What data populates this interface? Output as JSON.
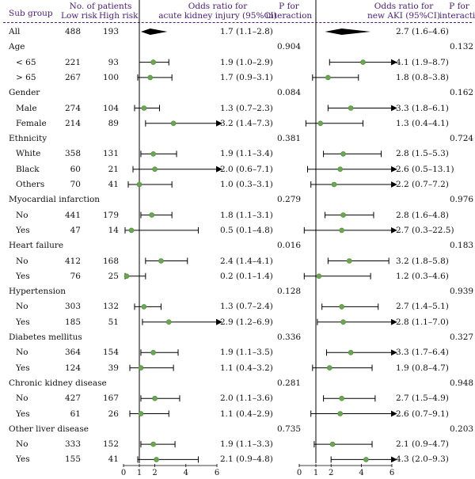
{
  "headers": {
    "subgroup": "Sub group",
    "patients": "No. of patients",
    "low_risk": "Low risk",
    "high_risk": "High risk",
    "or1_line1": "Odds ratio for",
    "or1_line2": "acute kidney injury (95%CI)",
    "p1_line1": "P for",
    "p1_line2": "interaction",
    "or2_line1": "Odds ratio for",
    "or2_line2": "new AKI (95%CI)",
    "p2_line1": "P for",
    "p2_line2": "interaction"
  },
  "chart_data": {
    "type": "forest",
    "axis_ticks": [
      "0",
      "1",
      "2",
      "4",
      "6"
    ],
    "reference_line": 1,
    "rows": [
      {
        "kind": "group",
        "label": "All",
        "low": "488",
        "high": "193",
        "or1": 1.7,
        "ci1": [
          1.1,
          2.8
        ],
        "text1": "1.7 (1.1–2.8)",
        "p1": "",
        "or2": 2.7,
        "ci2": [
          1.6,
          4.6
        ],
        "text2": "2.7 (1.6–4.6)",
        "p2": "",
        "diamond": true
      },
      {
        "kind": "group",
        "label": "Age",
        "p1": "0.904",
        "p2": "0.132"
      },
      {
        "kind": "sub",
        "label": "< 65",
        "low": "221",
        "high": "93",
        "or1": 1.9,
        "ci1": [
          1.0,
          2.9
        ],
        "text1": "1.9 (1.0–2.9)",
        "or2": 4.1,
        "ci2": [
          1.9,
          8.7
        ],
        "text2": "4.1 (1.9–8.7)"
      },
      {
        "kind": "sub",
        "label": "> 65",
        "low": "267",
        "high": "100",
        "or1": 1.7,
        "ci1": [
          0.9,
          3.1
        ],
        "text1": "1.7 (0.9–3.1)",
        "or2": 1.8,
        "ci2": [
          0.8,
          3.8
        ],
        "text2": "1.8 (0.8–3.8)"
      },
      {
        "kind": "group",
        "label": "Gender",
        "p1": "0.084",
        "p2": "0.162"
      },
      {
        "kind": "sub",
        "label": "Male",
        "low": "274",
        "high": "104",
        "or1": 1.3,
        "ci1": [
          0.7,
          2.3
        ],
        "text1": "1.3 (0.7–2.3)",
        "or2": 3.3,
        "ci2": [
          1.8,
          6.1
        ],
        "text2": "3.3 (1.8–6.1)"
      },
      {
        "kind": "sub",
        "label": "Female",
        "low": "214",
        "high": "89",
        "or1": 3.2,
        "ci1": [
          1.4,
          7.3
        ],
        "text1": "3.2 (1.4–7.3)",
        "or2": 1.3,
        "ci2": [
          0.4,
          4.1
        ],
        "text2": "1.3 (0.4–4.1)"
      },
      {
        "kind": "group",
        "label": "Ethnicity",
        "p1": "0.381",
        "p2": "0.724"
      },
      {
        "kind": "sub",
        "label": "White",
        "low": "358",
        "high": "131",
        "or1": 1.9,
        "ci1": [
          1.1,
          3.4
        ],
        "text1": "1.9 (1.1–3.4)",
        "or2": 2.8,
        "ci2": [
          1.5,
          5.3
        ],
        "text2": "2.8 (1.5–5.3)"
      },
      {
        "kind": "sub",
        "label": "Black",
        "low": "60",
        "high": "21",
        "or1": 2.0,
        "ci1": [
          0.6,
          7.1
        ],
        "text1": "2.0 (0.6–7.1)",
        "or2": 2.6,
        "ci2": [
          0.5,
          13.1
        ],
        "text2": "2.6 (0.5–13.1)"
      },
      {
        "kind": "sub",
        "label": "Others",
        "low": "70",
        "high": "41",
        "or1": 1.0,
        "ci1": [
          0.3,
          3.1
        ],
        "text1": "1.0 (0.3–3.1)",
        "or2": 2.2,
        "ci2": [
          0.7,
          7.2
        ],
        "text2": "2.2 (0.7–7.2)"
      },
      {
        "kind": "group",
        "label": "Myocardial infarction",
        "p1": "0.279",
        "p2": "0.976"
      },
      {
        "kind": "sub",
        "label": "No",
        "low": "441",
        "high": "179",
        "or1": 1.8,
        "ci1": [
          1.1,
          3.1
        ],
        "text1": "1.8 (1.1–3.1)",
        "or2": 2.8,
        "ci2": [
          1.6,
          4.8
        ],
        "text2": "2.8 (1.6–4.8)"
      },
      {
        "kind": "sub",
        "label": "Yes",
        "low": "47",
        "high": "14",
        "or1": 0.5,
        "ci1": [
          0.1,
          4.8
        ],
        "text1": "0.5 (0.1–4.8)",
        "or2": 2.7,
        "ci2": [
          0.3,
          22.5
        ],
        "text2": "2.7 (0.3–22.5)"
      },
      {
        "kind": "group",
        "label": "Heart failure",
        "p1": "0.016",
        "p2": "0.183"
      },
      {
        "kind": "sub",
        "label": "No",
        "low": "412",
        "high": "168",
        "or1": 2.4,
        "ci1": [
          1.4,
          4.1
        ],
        "text1": "2.4 (1.4–4.1)",
        "or2": 3.2,
        "ci2": [
          1.8,
          5.8
        ],
        "text2": "3.2 (1.8–5.8)"
      },
      {
        "kind": "sub",
        "label": "Yes",
        "low": "76",
        "high": "25",
        "or1": 0.2,
        "ci1": [
          0.1,
          1.4
        ],
        "text1": "0.2 (0.1–1.4)",
        "or2": 1.2,
        "ci2": [
          0.3,
          4.6
        ],
        "text2": "1.2 (0.3–4.6)"
      },
      {
        "kind": "group",
        "label": "Hypertension",
        "p1": "0.128",
        "p2": "0.939"
      },
      {
        "kind": "sub",
        "label": "No",
        "low": "303",
        "high": "132",
        "or1": 1.3,
        "ci1": [
          0.7,
          2.4
        ],
        "text1": "1.3 (0.7–2.4)",
        "or2": 2.7,
        "ci2": [
          1.4,
          5.1
        ],
        "text2": "2.7 (1.4–5.1)"
      },
      {
        "kind": "sub",
        "label": "Yes",
        "low": "185",
        "high": "51",
        "or1": 2.9,
        "ci1": [
          1.2,
          6.9
        ],
        "text1": "2.9 (1.2–6.9)",
        "or2": 2.8,
        "ci2": [
          1.1,
          7.0
        ],
        "text2": "2.8 (1.1–7.0)"
      },
      {
        "kind": "group",
        "label": "Diabetes mellitus",
        "p1": "0.336",
        "p2": "0.327"
      },
      {
        "kind": "sub",
        "label": "No",
        "low": "364",
        "high": "154",
        "or1": 1.9,
        "ci1": [
          1.1,
          3.5
        ],
        "text1": "1.9 (1.1–3.5)",
        "or2": 3.3,
        "ci2": [
          1.7,
          6.4
        ],
        "text2": "3.3 (1.7–6.4)"
      },
      {
        "kind": "sub",
        "label": "Yes",
        "low": "124",
        "high": "39",
        "or1": 1.1,
        "ci1": [
          0.4,
          3.2
        ],
        "text1": "1.1 (0.4–3.2)",
        "or2": 1.9,
        "ci2": [
          0.8,
          4.7
        ],
        "text2": "1.9 (0.8–4.7)"
      },
      {
        "kind": "group",
        "label": "Chronic kidney disease",
        "p1": "0.281",
        "p2": "0.948"
      },
      {
        "kind": "sub",
        "label": "No",
        "low": "427",
        "high": "167",
        "or1": 2.0,
        "ci1": [
          1.1,
          3.6
        ],
        "text1": "2.0 (1.1–3.6)",
        "or2": 2.7,
        "ci2": [
          1.5,
          4.9
        ],
        "text2": "2.7 (1.5–4.9)"
      },
      {
        "kind": "sub",
        "label": "Yes",
        "low": "61",
        "high": "26",
        "or1": 1.1,
        "ci1": [
          0.4,
          2.9
        ],
        "text1": "1.1 (0.4–2.9)",
        "or2": 2.6,
        "ci2": [
          0.7,
          9.1
        ],
        "text2": "2.6 (0.7–9.1)"
      },
      {
        "kind": "group",
        "label": "Other liver disease",
        "p1": "0.735",
        "p2": "0.203"
      },
      {
        "kind": "sub",
        "label": "No",
        "low": "333",
        "high": "152",
        "or1": 1.9,
        "ci1": [
          1.1,
          3.3
        ],
        "text1": "1.9 (1.1–3.3)",
        "or2": 2.1,
        "ci2": [
          0.9,
          4.7
        ],
        "text2": "2.1 (0.9–4.7)"
      },
      {
        "kind": "sub",
        "label": "Yes",
        "low": "155",
        "high": "41",
        "or1": 2.1,
        "ci1": [
          0.9,
          4.8
        ],
        "text1": "2.1 (0.9–4.8)",
        "or2": 4.3,
        "ci2": [
          2.0,
          9.3
        ],
        "text2": "4.3 (2.0–9.3)"
      }
    ]
  }
}
